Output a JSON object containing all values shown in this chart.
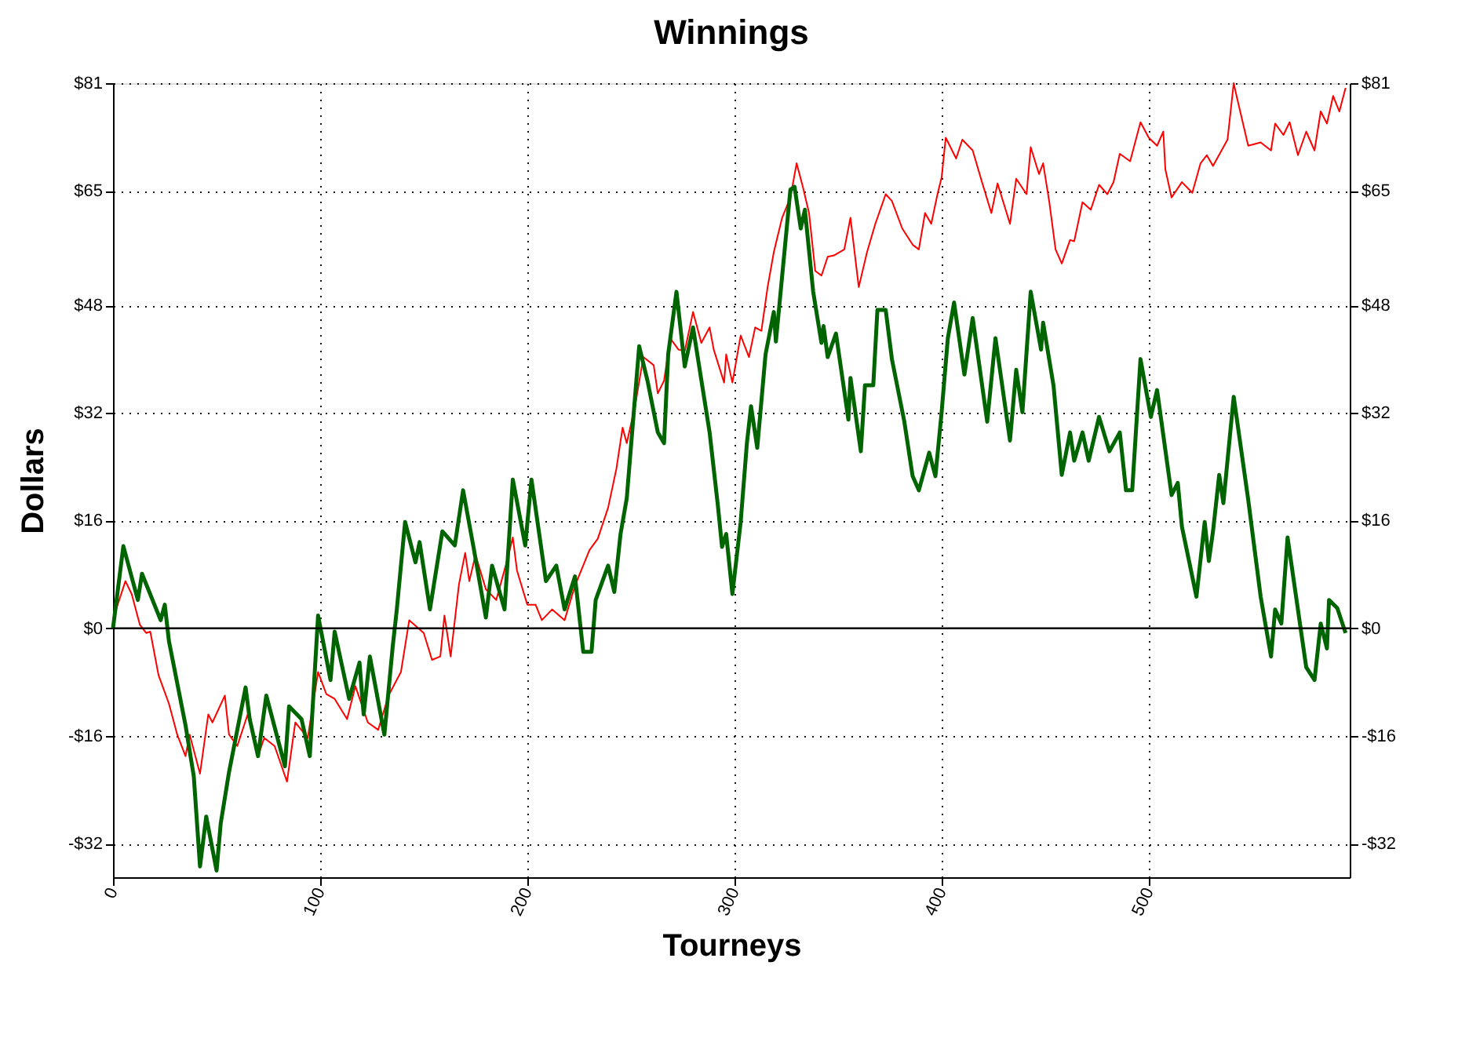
{
  "chart_data": {
    "type": "line",
    "title": "Winnings",
    "xlabel": "Tourneys",
    "ylabel": "Dollars",
    "xlim": [
      0,
      597
    ],
    "xticks": [
      0,
      100,
      200,
      300,
      400,
      500
    ],
    "ylim": [
      -37,
      81
    ],
    "yticks": [
      {
        "value": -32,
        "label": "-$32"
      },
      {
        "value": -16,
        "label": "-$16"
      },
      {
        "value": 0,
        "label": "$0"
      },
      {
        "value": 16,
        "label": "$16"
      },
      {
        "value": 32,
        "label": "$32"
      },
      {
        "value": 48,
        "label": "$48"
      },
      {
        "value": 65,
        "label": "$65"
      },
      {
        "value": 81,
        "label": "$81"
      }
    ],
    "y2lim": [
      -37,
      81
    ],
    "y2ticks": [
      {
        "value": -32,
        "label": "-$32"
      },
      {
        "value": -16,
        "label": "-$16"
      },
      {
        "value": 0,
        "label": "$0"
      },
      {
        "value": 16,
        "label": "$16"
      },
      {
        "value": 32,
        "label": "$32"
      },
      {
        "value": 48,
        "label": "$48"
      },
      {
        "value": 65,
        "label": "$65"
      },
      {
        "value": 81,
        "label": "$81"
      }
    ],
    "grid": true,
    "marker": "none",
    "line_style": "solid",
    "ref_lines": [
      {
        "axis": "y",
        "value": 0,
        "color": "#000000"
      }
    ],
    "series": [
      {
        "color": "#ff0000",
        "x": [
          0,
          1.5,
          6,
          9,
          13,
          16,
          18,
          22,
          27,
          31,
          35,
          37,
          42,
          46,
          48,
          54,
          56,
          60,
          65,
          70,
          73,
          78,
          84,
          88,
          94,
          99,
          103,
          107,
          113,
          117,
          123,
          128,
          133,
          139,
          143,
          150,
          154,
          158,
          160,
          163,
          167,
          170,
          172,
          175,
          180,
          185,
          190,
          193,
          195,
          200,
          204,
          207,
          212,
          218,
          223,
          230,
          234,
          239,
          243,
          246,
          248,
          252,
          256,
          261,
          263,
          266,
          269,
          273,
          276,
          280,
          284,
          288,
          290,
          295,
          296,
          299,
          303,
          307,
          310,
          313,
          316,
          319,
          323,
          327,
          330,
          333,
          336,
          339,
          342,
          345,
          348,
          353,
          356,
          360,
          364,
          368,
          373,
          376,
          381,
          386,
          389,
          392,
          395,
          398,
          400,
          402,
          407,
          410,
          415,
          419,
          424,
          427,
          433,
          436,
          441,
          443,
          447,
          449,
          452,
          455,
          458,
          462,
          464,
          468,
          472,
          476,
          480,
          483,
          486,
          491,
          496,
          500,
          504,
          507,
          508,
          511,
          516,
          521,
          525,
          528,
          531,
          538,
          541,
          542,
          548,
          554,
          559,
          561,
          565,
          568,
          572,
          576,
          580,
          583,
          586,
          589,
          592,
          595
        ],
        "values": [
          0,
          2.8,
          7,
          5.1,
          0.5,
          -0.7,
          -0.5,
          -7,
          -11.2,
          -15.8,
          -19,
          -15.8,
          -21.6,
          -12.8,
          -14,
          -10,
          -15.8,
          -17.5,
          -12.8,
          -19,
          -16.3,
          -17.5,
          -22.8,
          -14,
          -16.3,
          -6.5,
          -9.8,
          -10.5,
          -13.5,
          -8.6,
          -14,
          -15.1,
          -10,
          -6.5,
          1.2,
          -0.7,
          -4.7,
          -4.2,
          1.9,
          -4.2,
          6.5,
          11.2,
          7,
          10.9,
          5.8,
          4.2,
          9.8,
          13.5,
          8.6,
          3.5,
          3.5,
          1.2,
          2.8,
          1.2,
          6.3,
          11.6,
          13.3,
          17.9,
          23.7,
          29.8,
          27.5,
          33,
          40.3,
          39.1,
          34.9,
          36.8,
          43.1,
          41.4,
          41.2,
          47,
          42.4,
          44.7,
          41.4,
          36.5,
          40.7,
          36.5,
          43.5,
          40.3,
          44.7,
          44.2,
          50.7,
          55.9,
          61,
          64,
          69.1,
          65.6,
          61.7,
          53.1,
          52.4,
          55.2,
          55.4,
          56.3,
          61,
          50.7,
          55.9,
          60.1,
          64.5,
          63.5,
          59.4,
          57,
          56.3,
          61.7,
          60.1,
          64.5,
          67,
          72.9,
          69.8,
          72.6,
          71,
          66.8,
          61.7,
          66.1,
          60.1,
          66.8,
          64.5,
          71.5,
          67.5,
          69.1,
          63.3,
          56.3,
          54.2,
          57.7,
          57.5,
          63.3,
          62.2,
          65.9,
          64.5,
          66.3,
          70.5,
          69.4,
          75.2,
          72.9,
          71.7,
          73.8,
          68.2,
          64,
          66.3,
          64.7,
          69.1,
          70.3,
          68.7,
          72.6,
          81,
          79.6,
          71.7,
          72.2,
          71,
          75,
          73.3,
          75.2,
          70.3,
          73.8,
          71,
          76.8,
          75,
          79.1,
          76.8,
          80.3
        ]
      },
      {
        "color": "#006400",
        "x": [
          0,
          5,
          12,
          14,
          23,
          25,
          27,
          35,
          39,
          42,
          45,
          50,
          52,
          56,
          64,
          66,
          70,
          74,
          83,
          85,
          91,
          95,
          99,
          105,
          107,
          114,
          119,
          121,
          124,
          131,
          135,
          137,
          141,
          146,
          148,
          153,
          159,
          165,
          169,
          174,
          180,
          183,
          189,
          193,
          199,
          202,
          209,
          214,
          218,
          223,
          227,
          231,
          233,
          239,
          242,
          245,
          248,
          254,
          258,
          263,
          266,
          268,
          272,
          276,
          280,
          288,
          292,
          294,
          296,
          299,
          303,
          306,
          308,
          311,
          315,
          319,
          320,
          327,
          329,
          332,
          334,
          338,
          342,
          343,
          345,
          349,
          355,
          356,
          361,
          363,
          367,
          369,
          373,
          376,
          382,
          386,
          389,
          394,
          397,
          400,
          403,
          406,
          411,
          415,
          422,
          426,
          433,
          436,
          439,
          443,
          448,
          449,
          454,
          458,
          462,
          464,
          468,
          471,
          476,
          481,
          486,
          489,
          492,
          496,
          501,
          504,
          511,
          514,
          516,
          523,
          527,
          529,
          531,
          534,
          536,
          541,
          548,
          554,
          559,
          561,
          564,
          567,
          576,
          580,
          583,
          586,
          587,
          591,
          595
        ],
        "values": [
          0,
          12.2,
          4.2,
          8.1,
          1.2,
          3.5,
          -1.9,
          -14.4,
          -22,
          -35.4,
          -28,
          -36,
          -29,
          -21.4,
          -8.8,
          -13.5,
          -19,
          -10,
          -20.5,
          -11.6,
          -13.5,
          -19,
          1.9,
          -7.7,
          -0.5,
          -10.5,
          -5.1,
          -12.8,
          -4.2,
          -15.8,
          -2.8,
          2.8,
          15.8,
          9.8,
          12.8,
          2.8,
          14.4,
          12.3,
          20.5,
          12.1,
          1.6,
          9.3,
          2.8,
          22.1,
          12.3,
          22.1,
          7,
          9.3,
          2.8,
          7.7,
          -3.5,
          -3.5,
          4.2,
          9.3,
          5.4,
          14,
          19.3,
          41.9,
          36.8,
          29.1,
          27.5,
          40.7,
          50,
          38.9,
          44.7,
          29.1,
          18.2,
          12.1,
          14,
          5.1,
          15.8,
          27.5,
          33,
          26.8,
          40.7,
          47,
          42.6,
          65.2,
          65.6,
          59.4,
          62.2,
          50,
          42.4,
          44.9,
          40.3,
          43.8,
          31,
          37.2,
          26.3,
          36.1,
          36.1,
          47.3,
          47.3,
          40,
          30.7,
          22.6,
          20.5,
          26.1,
          22.6,
          32.1,
          43.1,
          48.4,
          37.7,
          46.1,
          30.7,
          43.1,
          27.9,
          38.4,
          32.1,
          50,
          41.4,
          45.4,
          36.1,
          22.8,
          29.1,
          24.9,
          29.1,
          24.9,
          31.4,
          26.3,
          29.1,
          20.5,
          20.5,
          40,
          31.4,
          35.4,
          19.8,
          21.6,
          15.1,
          4.7,
          15.8,
          10,
          14.4,
          22.8,
          18.6,
          34.4,
          19.1,
          4.7,
          -4.2,
          2.8,
          0.7,
          13.5,
          -5.8,
          -7.7,
          0.7,
          -3,
          4.2,
          3,
          -0.7
        ]
      }
    ]
  }
}
